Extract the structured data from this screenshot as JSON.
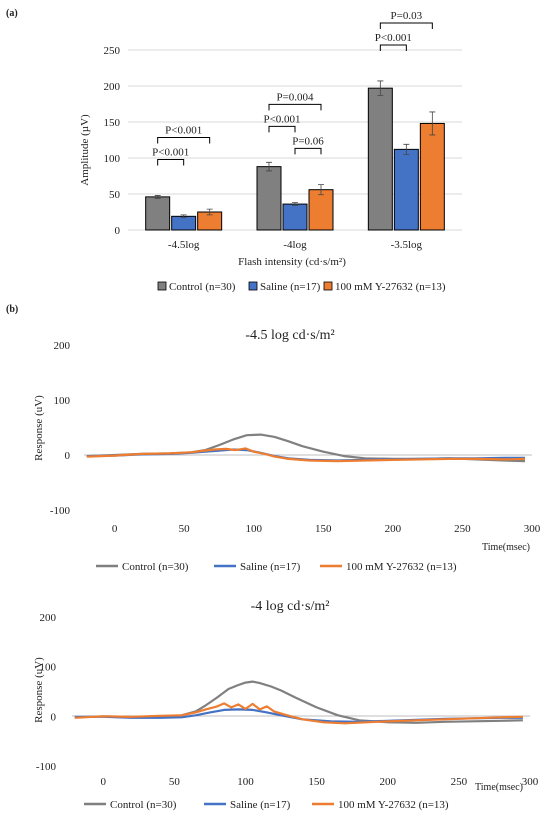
{
  "panel_labels": {
    "a": "(a)",
    "b": "(b)"
  },
  "colors": {
    "control": "#808080",
    "saline": "#4472c4",
    "y27632": "#ed7d31",
    "grid": "#d9d9d9"
  },
  "chart_data": [
    {
      "type": "bar",
      "title": "",
      "xlabel": "Flash intensity (cd·s/m²)",
      "ylabel": "Amplitude (µV)",
      "ylim": [
        0,
        250
      ],
      "yticks": [
        0,
        50,
        100,
        150,
        200,
        250
      ],
      "grid": true,
      "legend_position": "bottom",
      "categories": [
        "-4.5log",
        "-4log",
        "-3.5log"
      ],
      "series": [
        {
          "name": "Control (n=30)",
          "values": [
            46,
            88,
            197
          ],
          "errors": [
            2,
            6,
            10
          ]
        },
        {
          "name": "Saline (n=17)",
          "values": [
            19,
            36,
            112
          ],
          "errors": [
            2,
            2,
            7
          ]
        },
        {
          "name": "100 mM Y-27632 (n=13)",
          "values": [
            25,
            56,
            148
          ],
          "errors": [
            4,
            7,
            16
          ]
        }
      ],
      "annotations": [
        {
          "category": 0,
          "from_series": 0,
          "to_series": 1,
          "text": "P<0.001",
          "level": 1
        },
        {
          "category": 0,
          "from_series": 0,
          "to_series": 2,
          "text": "P<0.001",
          "level": 2
        },
        {
          "category": 1,
          "from_series": 0,
          "to_series": 1,
          "text": "P<0.001",
          "level": 1
        },
        {
          "category": 1,
          "from_series": 1,
          "to_series": 2,
          "text": "P=0.06",
          "level": 0
        },
        {
          "category": 1,
          "from_series": 0,
          "to_series": 2,
          "text": "P=0.004",
          "level": 2
        },
        {
          "category": 2,
          "from_series": 0,
          "to_series": 1,
          "text": "P<0.001",
          "level": 1
        },
        {
          "category": 2,
          "from_series": 0,
          "to_series": 2,
          "text": "P=0.03",
          "level": 2
        }
      ]
    },
    {
      "type": "line",
      "title": "-4.5 log cd·s/m²",
      "xlabel": "Time(msec)",
      "ylabel": "Response (uV)",
      "xlim": [
        -22,
        300
      ],
      "ylim": [
        -100,
        200
      ],
      "xticks": [
        0,
        50,
        100,
        150,
        200,
        250,
        300
      ],
      "yticks": [
        -100,
        0,
        100,
        200
      ],
      "grid": false,
      "legend_position": "bottom",
      "series": [
        {
          "name": "Control (n=30)",
          "x": [
            -20,
            0,
            20,
            40,
            55,
            65,
            75,
            85,
            95,
            105,
            115,
            125,
            135,
            150,
            165,
            180,
            200,
            220,
            240,
            260,
            280,
            295
          ],
          "y": [
            -2,
            0,
            2,
            3,
            5,
            9,
            18,
            28,
            36,
            37,
            33,
            25,
            16,
            6,
            -2,
            -6,
            -7,
            -7,
            -6,
            -8,
            -10,
            -11
          ]
        },
        {
          "name": "Saline (n=17)",
          "x": [
            -20,
            0,
            20,
            40,
            55,
            65,
            75,
            85,
            95,
            105,
            115,
            125,
            140,
            160,
            180,
            200,
            220,
            240,
            260,
            280,
            295
          ],
          "y": [
            -2,
            -1,
            1,
            2,
            4,
            6,
            8,
            10,
            9,
            4,
            -2,
            -6,
            -9,
            -10,
            -9,
            -8,
            -7,
            -6,
            -6,
            -5,
            -5
          ]
        },
        {
          "name": "100 mM Y-27632 (n=13)",
          "x": [
            -20,
            0,
            20,
            40,
            55,
            65,
            72,
            80,
            87,
            94,
            100,
            108,
            115,
            125,
            140,
            160,
            180,
            200,
            220,
            240,
            260,
            280,
            295
          ],
          "y": [
            -3,
            -1,
            2,
            3,
            5,
            8,
            10,
            11,
            9,
            12,
            6,
            2,
            -3,
            -7,
            -10,
            -11,
            -10,
            -9,
            -8,
            -7,
            -7,
            -8,
            -7
          ]
        }
      ]
    },
    {
      "type": "line",
      "title": "-4 log cd·s/m²",
      "xlabel": "Time(msec)",
      "ylabel": "Response (uV)",
      "xlim": [
        -22,
        300
      ],
      "ylim": [
        -100,
        200
      ],
      "xticks": [
        0,
        50,
        100,
        150,
        200,
        250,
        300
      ],
      "yticks": [
        -100,
        0,
        100,
        200
      ],
      "grid": false,
      "legend_position": "bottom",
      "series": [
        {
          "name": "Control (n=30)",
          "x": [
            -20,
            0,
            20,
            40,
            55,
            65,
            72,
            80,
            88,
            95,
            100,
            105,
            110,
            118,
            125,
            135,
            150,
            165,
            180,
            200,
            220,
            240,
            260,
            280,
            295
          ],
          "y": [
            -2,
            0,
            -1,
            0,
            2,
            10,
            22,
            38,
            55,
            63,
            68,
            70,
            67,
            60,
            52,
            38,
            18,
            2,
            -8,
            -12,
            -13,
            -11,
            -10,
            -9,
            -8
          ]
        },
        {
          "name": "Saline (n=17)",
          "x": [
            -20,
            0,
            20,
            40,
            55,
            65,
            75,
            85,
            95,
            105,
            115,
            125,
            140,
            160,
            180,
            200,
            220,
            240,
            260,
            280,
            295
          ],
          "y": [
            -1,
            -1,
            -3,
            -3,
            -2,
            2,
            8,
            13,
            14,
            13,
            8,
            2,
            -6,
            -10,
            -11,
            -9,
            -7,
            -5,
            -4,
            -3,
            -3
          ]
        },
        {
          "name": "100 mM Y-27632 (n=13)",
          "x": [
            -20,
            0,
            20,
            40,
            55,
            65,
            72,
            80,
            85,
            90,
            95,
            100,
            105,
            110,
            115,
            120,
            128,
            140,
            155,
            170,
            185,
            200,
            220,
            240,
            260,
            280,
            295
          ],
          "y": [
            -3,
            0,
            -1,
            1,
            2,
            8,
            14,
            20,
            26,
            18,
            24,
            15,
            25,
            14,
            20,
            10,
            3,
            -6,
            -12,
            -14,
            -12,
            -10,
            -8,
            -6,
            -4,
            -2,
            -1
          ]
        }
      ]
    }
  ]
}
